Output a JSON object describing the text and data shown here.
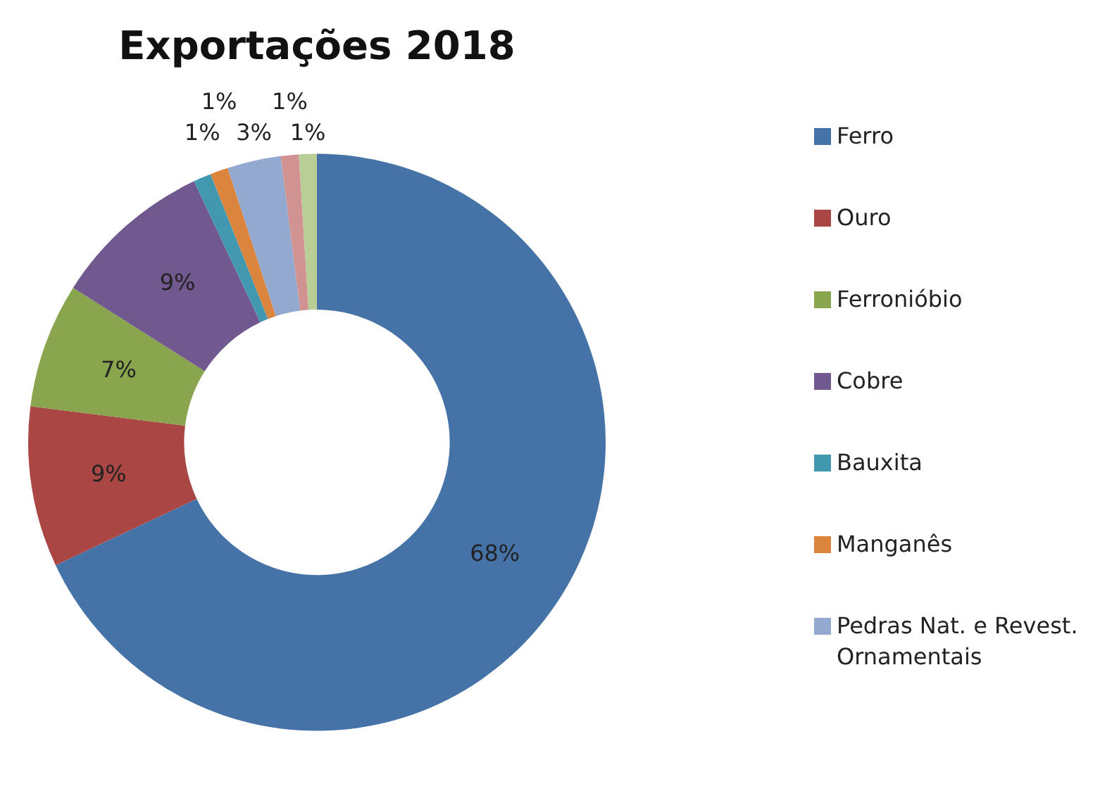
{
  "chart_data": {
    "type": "donut",
    "title": "Exportações 2018",
    "categories": [
      "Ferro",
      "Ouro",
      "Ferronióbio",
      "Cobre",
      "Bauxita",
      "Manganês",
      "Pedras Nat. e Revest. Ornamentais",
      null,
      null
    ],
    "values": [
      68,
      9,
      7,
      9,
      1,
      1,
      3,
      1,
      1
    ],
    "colors": [
      "#4572a7",
      "#aa4643",
      "#89a54e",
      "#71588f",
      "#4198af",
      "#db843d",
      "#93a9cf",
      "#d19392",
      "#b9cd96"
    ],
    "value_labels": [
      "68%",
      "9%",
      "7%",
      "9%",
      "1%",
      "1%",
      "3%",
      "1%",
      "1%"
    ],
    "legend": "right"
  }
}
